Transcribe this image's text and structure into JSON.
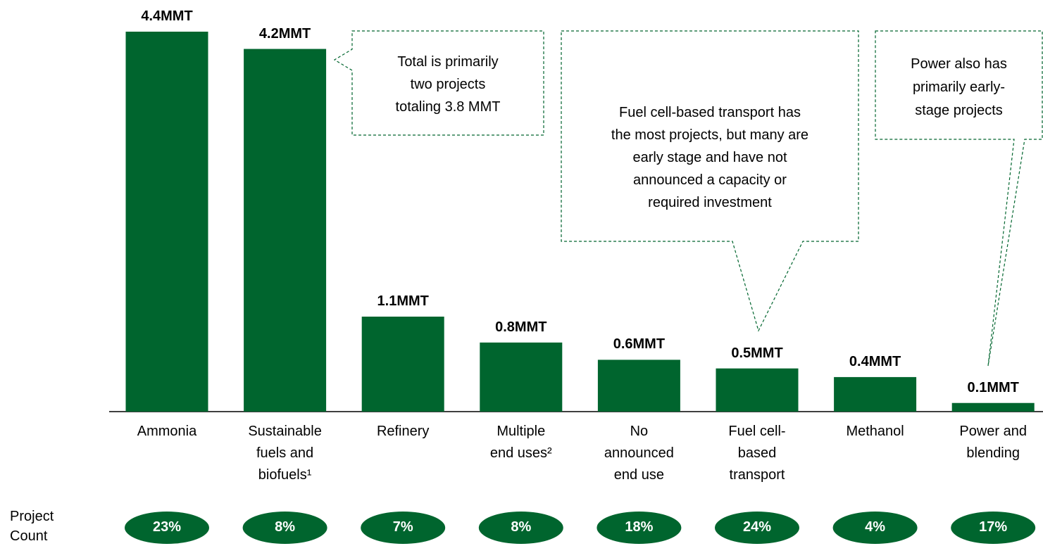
{
  "chart_data": {
    "type": "bar",
    "categories": [
      "Ammonia",
      "Sustainable\nfuels and\nbiofuels¹",
      "Refinery",
      "Multiple\nend uses²",
      "No\nannounced\nend use",
      "Fuel cell-\nbased\ntransport",
      "Methanol",
      "Power and\nblending"
    ],
    "values": [
      4.4,
      4.2,
      1.1,
      0.8,
      0.6,
      0.5,
      0.4,
      0.1
    ],
    "value_labels": [
      "4.4MMT",
      "4.2MMT",
      "1.1MMT",
      "0.8MMT",
      "0.6MMT",
      "0.5MMT",
      "0.4MMT",
      "0.1MMT"
    ],
    "color": "#00652e",
    "project_count": {
      "label": "Project\nCount",
      "values": [
        23,
        8,
        7,
        8,
        18,
        24,
        4,
        17
      ],
      "value_labels": [
        "23%",
        "8%",
        "7%",
        "8%",
        "18%",
        "24%",
        "4%",
        "17%"
      ],
      "color": "#00652e"
    },
    "annotations": [
      "Total is primarily\ntwo projects\ntotaling 3.8 MMT",
      "Fuel cell-based transport has\nthe most projects, but many are\nearly stage and have not\nannounced a capacity or\nrequired investment",
      "Power also has\nprimarily early-\nstage projects"
    ]
  }
}
